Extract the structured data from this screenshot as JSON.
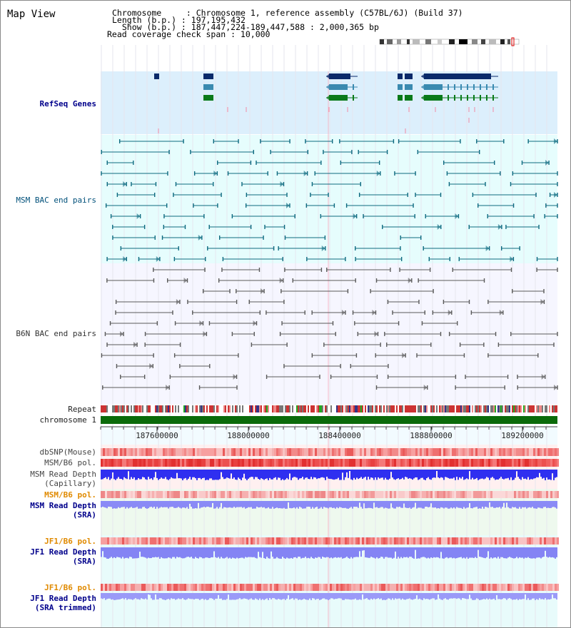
{
  "title": "Map View",
  "info": {
    "line1": "Chromosome     : Chromosome 1, reference assembly (C57BL/6J) (Build 37)",
    "line2": "Length (b.p.) : 197,195,432",
    "line3": "  Show (b.p.) : 187,447,224-189,447,588 : 2,000,365 bp",
    "line4": "Read coverage check span : 10,000"
  },
  "tracks": {
    "refseq": "RefSeq Genes",
    "msm_bac": "MSM BAC end pairs",
    "b6n_bac": "B6N BAC end pairs",
    "repeat": "Repeat",
    "chromosome": "chromosome 1",
    "dbsnp": "dbSNP(Mouse)",
    "msm_b6_pol": "MSM/B6 pol.",
    "msm_read_depth_cap_1": "MSM Read Depth",
    "msm_read_depth_cap_2": "(Capillary)",
    "msm_b6_pol_sra": "MSM/B6 pol.",
    "msm_read_depth_sra_1": "MSM Read Depth",
    "msm_read_depth_sra_2": "(SRA)",
    "jf1_b6_pol": "JF1/B6 pol.",
    "jf1_read_depth_1": "JF1 Read Depth",
    "jf1_read_depth_2": "(SRA)",
    "jf1_b6_pol_2": "JF1/B6 pol.",
    "jf1_read_depth_trim_1": "JF1 Read Depth",
    "jf1_read_depth_trim_2": "(SRA trimmed)"
  },
  "axis": {
    "ticks": [
      "187600000",
      "188000000",
      "188400000",
      "188800000",
      "189200000"
    ]
  },
  "colors": {
    "label_blue": "#00008b",
    "label_teal": "#00507a",
    "label_orange": "#e08a00",
    "label_gray": "#333333",
    "refseq_bg": "#dceffc",
    "msm_bg": "#e6fdfd",
    "b6n_bg": "#f6f6ff",
    "chrom_green": "#0a6a0a"
  }
}
